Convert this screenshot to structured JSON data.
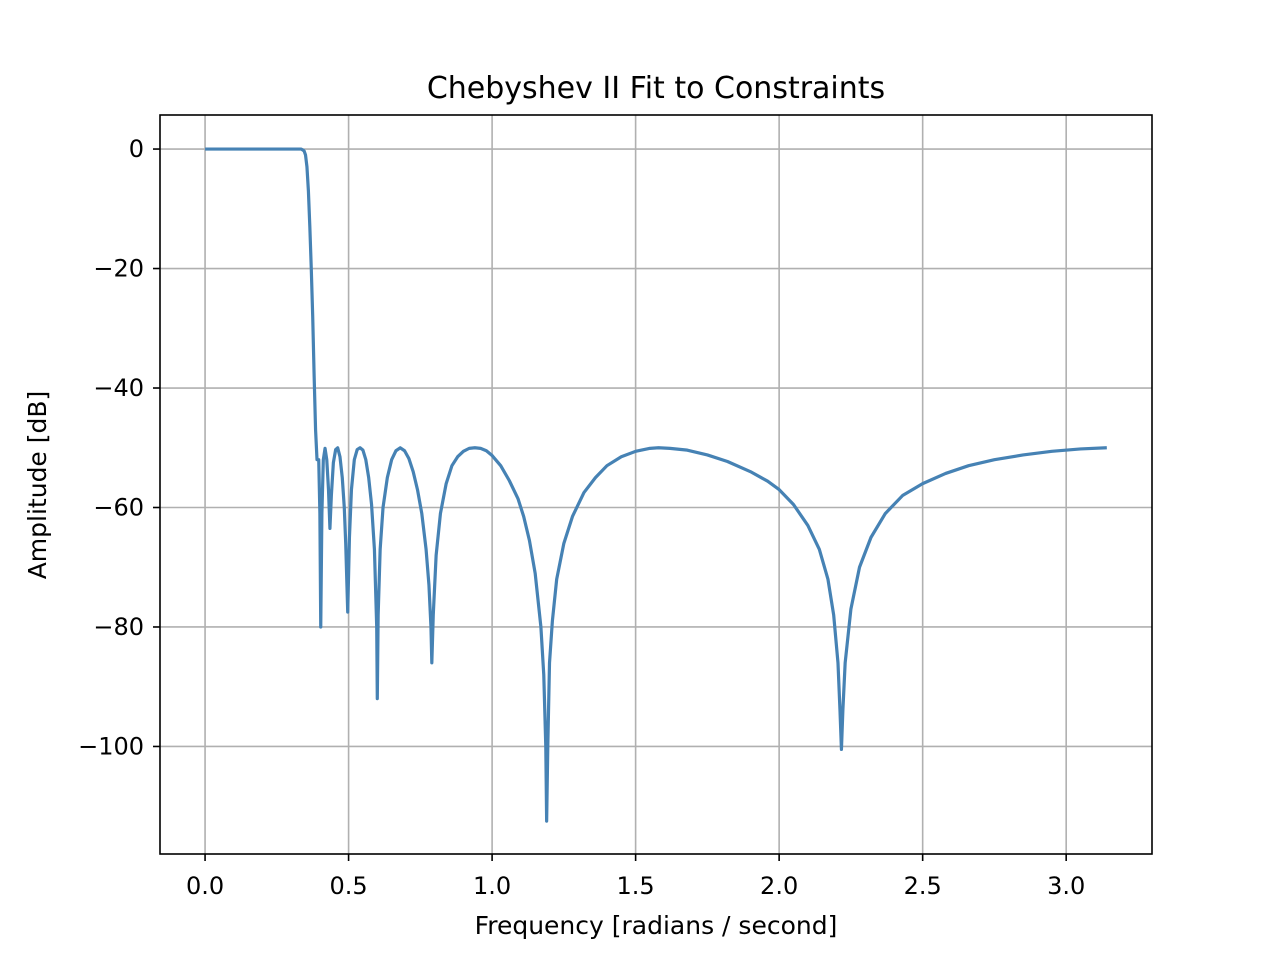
{
  "chart_data": {
    "type": "line",
    "title": "Chebyshev II Fit to Constraints",
    "xlabel": "Frequency [radians / second]",
    "ylabel": "Amplitude [dB]",
    "xlim": [
      -0.157,
      3.299
    ],
    "ylim": [
      -118.0,
      5.7
    ],
    "xticks": [
      0.0,
      0.5,
      1.0,
      1.5,
      2.0,
      2.5,
      3.0
    ],
    "xtick_labels": [
      "0.0",
      "0.5",
      "1.0",
      "1.5",
      "2.0",
      "2.5",
      "3.0"
    ],
    "yticks": [
      0,
      -20,
      -40,
      -60,
      -80,
      -100
    ],
    "ytick_labels": [
      "0",
      "−20",
      "−40",
      "−60",
      "−80",
      "−100"
    ],
    "grid": true,
    "series": [
      {
        "color": "#4682b4",
        "points": [
          [
            0.0,
            0.0
          ],
          [
            0.05,
            0.0
          ],
          [
            0.1,
            0.0
          ],
          [
            0.15,
            0.0
          ],
          [
            0.2,
            0.0
          ],
          [
            0.25,
            0.0
          ],
          [
            0.3,
            0.0
          ],
          [
            0.335,
            0.0
          ],
          [
            0.345,
            -0.3
          ],
          [
            0.35,
            -1.0
          ],
          [
            0.355,
            -3.0
          ],
          [
            0.36,
            -7.0
          ],
          [
            0.365,
            -13.0
          ],
          [
            0.37,
            -20.0
          ],
          [
            0.375,
            -28.0
          ],
          [
            0.38,
            -38.0
          ],
          [
            0.385,
            -47.0
          ],
          [
            0.39,
            -52.0
          ],
          [
            0.396,
            -52.0
          ],
          [
            0.4,
            -61.0
          ],
          [
            0.403,
            -80.0
          ],
          [
            0.407,
            -61.0
          ],
          [
            0.412,
            -52.0
          ],
          [
            0.418,
            -50.1
          ],
          [
            0.424,
            -52.0
          ],
          [
            0.43,
            -57.0
          ],
          [
            0.435,
            -63.5
          ],
          [
            0.44,
            -58.0
          ],
          [
            0.447,
            -52.5
          ],
          [
            0.455,
            -50.3
          ],
          [
            0.462,
            -50.0
          ],
          [
            0.47,
            -51.5
          ],
          [
            0.478,
            -55.0
          ],
          [
            0.485,
            -60.0
          ],
          [
            0.49,
            -66.0
          ],
          [
            0.497,
            -77.5
          ],
          [
            0.503,
            -65.0
          ],
          [
            0.51,
            -57.0
          ],
          [
            0.52,
            -52.0
          ],
          [
            0.53,
            -50.3
          ],
          [
            0.54,
            -50.0
          ],
          [
            0.55,
            -50.4
          ],
          [
            0.56,
            -52.0
          ],
          [
            0.57,
            -55.0
          ],
          [
            0.58,
            -59.5
          ],
          [
            0.59,
            -67.0
          ],
          [
            0.598,
            -80.0
          ],
          [
            0.6,
            -92.0
          ],
          [
            0.603,
            -78.0
          ],
          [
            0.61,
            -67.0
          ],
          [
            0.62,
            -60.0
          ],
          [
            0.635,
            -55.0
          ],
          [
            0.65,
            -52.0
          ],
          [
            0.665,
            -50.5
          ],
          [
            0.68,
            -50.0
          ],
          [
            0.695,
            -50.5
          ],
          [
            0.71,
            -51.8
          ],
          [
            0.725,
            -54.0
          ],
          [
            0.74,
            -57.0
          ],
          [
            0.755,
            -61.0
          ],
          [
            0.77,
            -67.0
          ],
          [
            0.78,
            -73.0
          ],
          [
            0.787,
            -80.0
          ],
          [
            0.79,
            -86.0
          ],
          [
            0.795,
            -78.0
          ],
          [
            0.805,
            -68.0
          ],
          [
            0.82,
            -61.0
          ],
          [
            0.84,
            -56.0
          ],
          [
            0.86,
            -53.0
          ],
          [
            0.88,
            -51.5
          ],
          [
            0.9,
            -50.6
          ],
          [
            0.92,
            -50.1
          ],
          [
            0.94,
            -50.0
          ],
          [
            0.96,
            -50.1
          ],
          [
            0.98,
            -50.5
          ],
          [
            1.0,
            -51.3
          ],
          [
            1.03,
            -53.0
          ],
          [
            1.06,
            -55.5
          ],
          [
            1.09,
            -58.5
          ],
          [
            1.11,
            -61.5
          ],
          [
            1.13,
            -65.5
          ],
          [
            1.15,
            -71.0
          ],
          [
            1.17,
            -80.0
          ],
          [
            1.18,
            -88.0
          ],
          [
            1.187,
            -100.0
          ],
          [
            1.19,
            -112.5
          ],
          [
            1.194,
            -100.0
          ],
          [
            1.2,
            -86.0
          ],
          [
            1.21,
            -79.0
          ],
          [
            1.225,
            -72.0
          ],
          [
            1.25,
            -66.0
          ],
          [
            1.28,
            -61.5
          ],
          [
            1.32,
            -57.5
          ],
          [
            1.36,
            -55.0
          ],
          [
            1.4,
            -53.0
          ],
          [
            1.45,
            -51.5
          ],
          [
            1.5,
            -50.6
          ],
          [
            1.55,
            -50.1
          ],
          [
            1.58,
            -50.0
          ],
          [
            1.62,
            -50.1
          ],
          [
            1.68,
            -50.4
          ],
          [
            1.75,
            -51.2
          ],
          [
            1.82,
            -52.3
          ],
          [
            1.9,
            -54.0
          ],
          [
            1.96,
            -55.6
          ],
          [
            2.0,
            -57.0
          ],
          [
            2.05,
            -59.5
          ],
          [
            2.1,
            -63.0
          ],
          [
            2.14,
            -67.0
          ],
          [
            2.17,
            -72.0
          ],
          [
            2.19,
            -78.0
          ],
          [
            2.205,
            -86.0
          ],
          [
            2.212,
            -94.0
          ],
          [
            2.217,
            -100.5
          ],
          [
            2.222,
            -94.0
          ],
          [
            2.23,
            -86.0
          ],
          [
            2.25,
            -77.0
          ],
          [
            2.28,
            -70.0
          ],
          [
            2.32,
            -65.0
          ],
          [
            2.37,
            -61.0
          ],
          [
            2.43,
            -58.0
          ],
          [
            2.5,
            -56.0
          ],
          [
            2.58,
            -54.3
          ],
          [
            2.66,
            -53.0
          ],
          [
            2.75,
            -52.0
          ],
          [
            2.85,
            -51.2
          ],
          [
            2.95,
            -50.6
          ],
          [
            3.05,
            -50.2
          ],
          [
            3.1416,
            -50.0
          ]
        ]
      }
    ]
  }
}
